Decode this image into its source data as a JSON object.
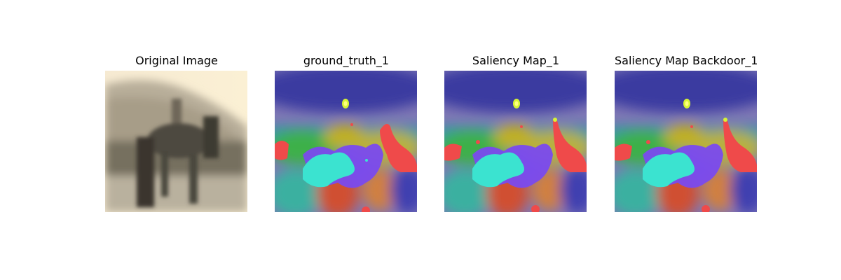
{
  "panels": [
    {
      "title": "Original Image"
    },
    {
      "title": "ground_truth_1"
    },
    {
      "title": "Saliency Map_1"
    },
    {
      "title": "Saliency Map Backdoor_1"
    }
  ]
}
